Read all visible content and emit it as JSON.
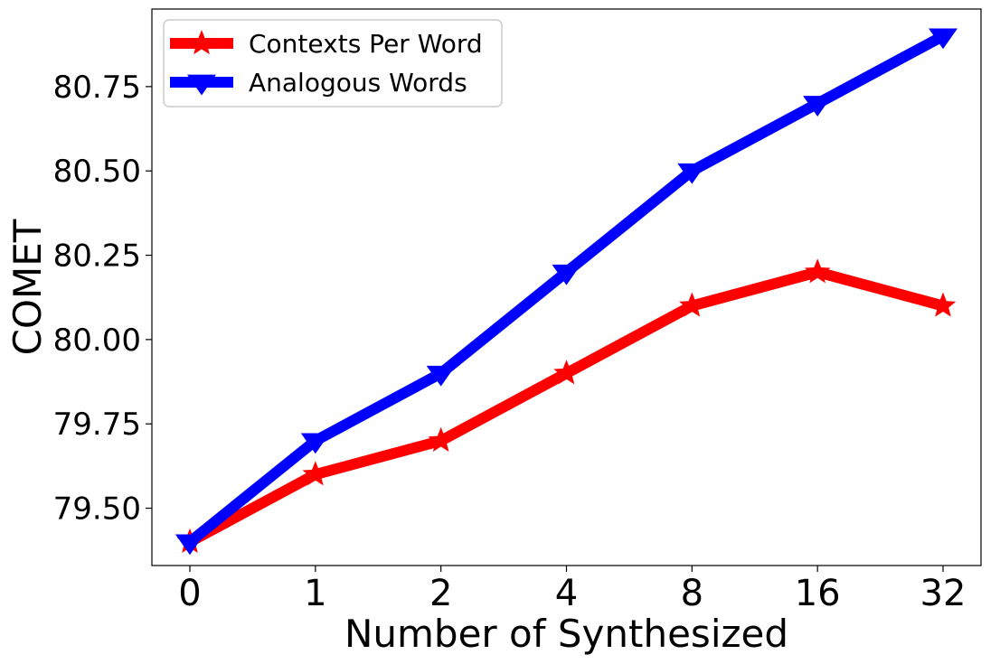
{
  "chart_data": {
    "type": "line",
    "categories": [
      "0",
      "1",
      "2",
      "4",
      "8",
      "16",
      "32"
    ],
    "series": [
      {
        "name": "Contexts Per Word",
        "color": "#ff0000",
        "marker": "star",
        "values": [
          79.4,
          79.6,
          79.7,
          79.9,
          80.1,
          80.2,
          80.1
        ]
      },
      {
        "name": "Analogous Words",
        "color": "#0000ff",
        "marker": "triangle-down",
        "values": [
          79.4,
          79.7,
          79.9,
          80.2,
          80.5,
          80.7,
          80.9
        ]
      }
    ],
    "xlabel": "Number of Synthesized",
    "ylabel": "COMET",
    "ylim": [
      79.33,
      80.98
    ],
    "yticks": [
      "79.50",
      "79.75",
      "80.00",
      "80.25",
      "80.50",
      "80.75"
    ],
    "grid": false,
    "legend_position": "top-left"
  }
}
